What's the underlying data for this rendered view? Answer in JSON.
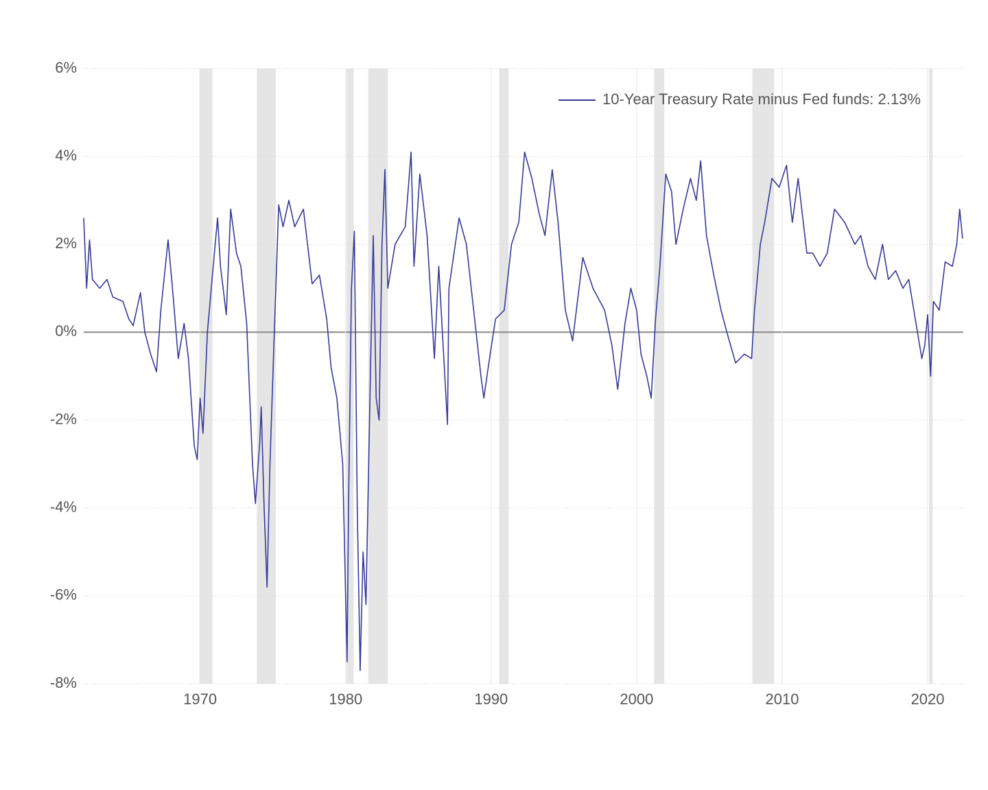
{
  "chart_data": {
    "type": "line",
    "xlim": [
      1962,
      2022.45
    ],
    "ylim": [
      -8,
      6
    ],
    "xticks": [
      1970,
      1980,
      1990,
      2000,
      2010,
      2020
    ],
    "yticks": [
      {
        "value": 6,
        "label": "6%"
      },
      {
        "value": 4,
        "label": "4%"
      },
      {
        "value": 2,
        "label": "2%"
      },
      {
        "value": 0,
        "label": "0%"
      },
      {
        "value": -2,
        "label": "-2%"
      },
      {
        "value": -4,
        "label": "-4%"
      },
      {
        "value": -6,
        "label": "-6%"
      },
      {
        "value": -8,
        "label": "-8%"
      }
    ],
    "grid": true,
    "legend": "top-right",
    "recession_color": "#e5e5e5",
    "recessions": [
      [
        1969.95,
        1970.85
      ],
      [
        1973.9,
        1975.2
      ],
      [
        1980.05,
        1980.55
      ],
      [
        1981.55,
        1982.9
      ],
      [
        1990.55,
        1991.2
      ],
      [
        2001.2,
        2001.9
      ],
      [
        2007.95,
        2009.45
      ],
      [
        2020.1,
        2020.35
      ]
    ],
    "x": [
      1962.0,
      1962.2,
      1962.4,
      1962.6,
      1963.1,
      1963.6,
      1964.0,
      1964.7,
      1965.1,
      1965.4,
      1965.9,
      1966.2,
      1966.6,
      1967.0,
      1967.3,
      1967.8,
      1968.1,
      1968.5,
      1968.9,
      1969.2,
      1969.6,
      1969.8,
      1970.0,
      1970.2,
      1970.5,
      1970.9,
      1971.2,
      1971.4,
      1971.8,
      1972.1,
      1972.5,
      1972.8,
      1973.2,
      1973.6,
      1973.8,
      1974.1,
      1974.2,
      1974.4,
      1974.6,
      1974.8,
      1975.1,
      1975.4,
      1975.7,
      1976.1,
      1976.5,
      1977.1,
      1977.7,
      1978.2,
      1978.7,
      1979.0,
      1979.4,
      1979.8,
      1980.1,
      1980.2,
      1980.4,
      1980.6,
      1980.8,
      1981.0,
      1981.2,
      1981.4,
      1981.7,
      1981.9,
      1982.1,
      1982.3,
      1982.5,
      1982.7,
      1982.9,
      1983.4,
      1984.1,
      1984.5,
      1984.7,
      1985.1,
      1985.6,
      1986.1,
      1986.4,
      1987.0,
      1987.1,
      1987.8,
      1988.3,
      1988.8,
      1989.3,
      1989.5,
      1989.8,
      1990.3,
      1990.9,
      1991.4,
      1991.9,
      1992.3,
      1992.8,
      1993.3,
      1993.7,
      1994.2,
      1994.6,
      1995.1,
      1995.6,
      1996.3,
      1997.0,
      1997.8,
      1998.3,
      1998.7,
      1999.2,
      1999.6,
      2000.0,
      2000.3,
      2000.7,
      2001.0,
      2001.3,
      2001.6,
      2002.0,
      2002.4,
      2002.7,
      2003.2,
      2003.7,
      2004.1,
      2004.4,
      2004.8,
      2005.3,
      2005.8,
      2006.2,
      2006.8,
      2007.4,
      2007.9,
      2008.1,
      2008.5,
      2008.8,
      2009.3,
      2009.8,
      2010.3,
      2010.7,
      2011.1,
      2011.7,
      2012.1,
      2012.6,
      2013.1,
      2013.6,
      2014.3,
      2015.0,
      2015.4,
      2015.9,
      2016.4,
      2016.9,
      2017.3,
      2017.8,
      2018.3,
      2018.7,
      2019.2,
      2019.6,
      2019.8,
      2020.0,
      2020.2,
      2020.4,
      2020.8,
      2021.2,
      2021.7,
      2022.0,
      2022.2,
      2022.4
    ],
    "series": [
      {
        "name": "10-Year Treasury Rate minus Fed funds: 2.13%",
        "color": "#38399a",
        "values": [
          2.6,
          1.0,
          2.1,
          1.2,
          1.0,
          1.2,
          0.8,
          0.7,
          0.3,
          0.15,
          0.9,
          0.0,
          -0.5,
          -0.9,
          0.5,
          2.1,
          1.0,
          -0.6,
          0.2,
          -0.6,
          -2.6,
          -2.9,
          -1.5,
          -2.3,
          0.0,
          1.5,
          2.6,
          1.5,
          0.4,
          2.8,
          1.8,
          1.5,
          0.2,
          -3.0,
          -3.9,
          -2.5,
          -1.7,
          -4.0,
          -5.8,
          -3.0,
          0.0,
          2.9,
          2.4,
          3.0,
          2.4,
          2.8,
          1.1,
          1.3,
          0.3,
          -0.8,
          -1.5,
          -3.0,
          -7.5,
          -4.0,
          1.0,
          2.3,
          -4.0,
          -7.7,
          -5.0,
          -6.2,
          -1.0,
          2.2,
          -1.5,
          -2.0,
          2.0,
          3.7,
          1.0,
          2.0,
          2.4,
          4.1,
          1.5,
          3.6,
          2.2,
          -0.6,
          1.5,
          -2.1,
          1.0,
          2.6,
          2.0,
          0.5,
          -1.0,
          -1.5,
          -0.8,
          0.3,
          0.5,
          2.0,
          2.5,
          4.1,
          3.5,
          2.7,
          2.2,
          3.7,
          2.5,
          0.5,
          -0.2,
          1.7,
          1.0,
          0.5,
          -0.3,
          -1.3,
          0.2,
          1.0,
          0.5,
          -0.5,
          -1.0,
          -1.5,
          0.3,
          1.5,
          3.6,
          3.2,
          2.0,
          2.8,
          3.5,
          3.0,
          3.9,
          2.2,
          1.3,
          0.5,
          0.0,
          -0.7,
          -0.5,
          -0.6,
          0.5,
          2.0,
          2.5,
          3.5,
          3.3,
          3.8,
          2.5,
          3.5,
          1.8,
          1.8,
          1.5,
          1.8,
          2.8,
          2.5,
          2.0,
          2.2,
          1.5,
          1.2,
          2.0,
          1.2,
          1.4,
          1.0,
          1.2,
          0.2,
          -0.6,
          -0.3,
          0.4,
          -1.0,
          0.7,
          0.5,
          1.6,
          1.5,
          2.0,
          2.8,
          2.13
        ]
      }
    ]
  }
}
